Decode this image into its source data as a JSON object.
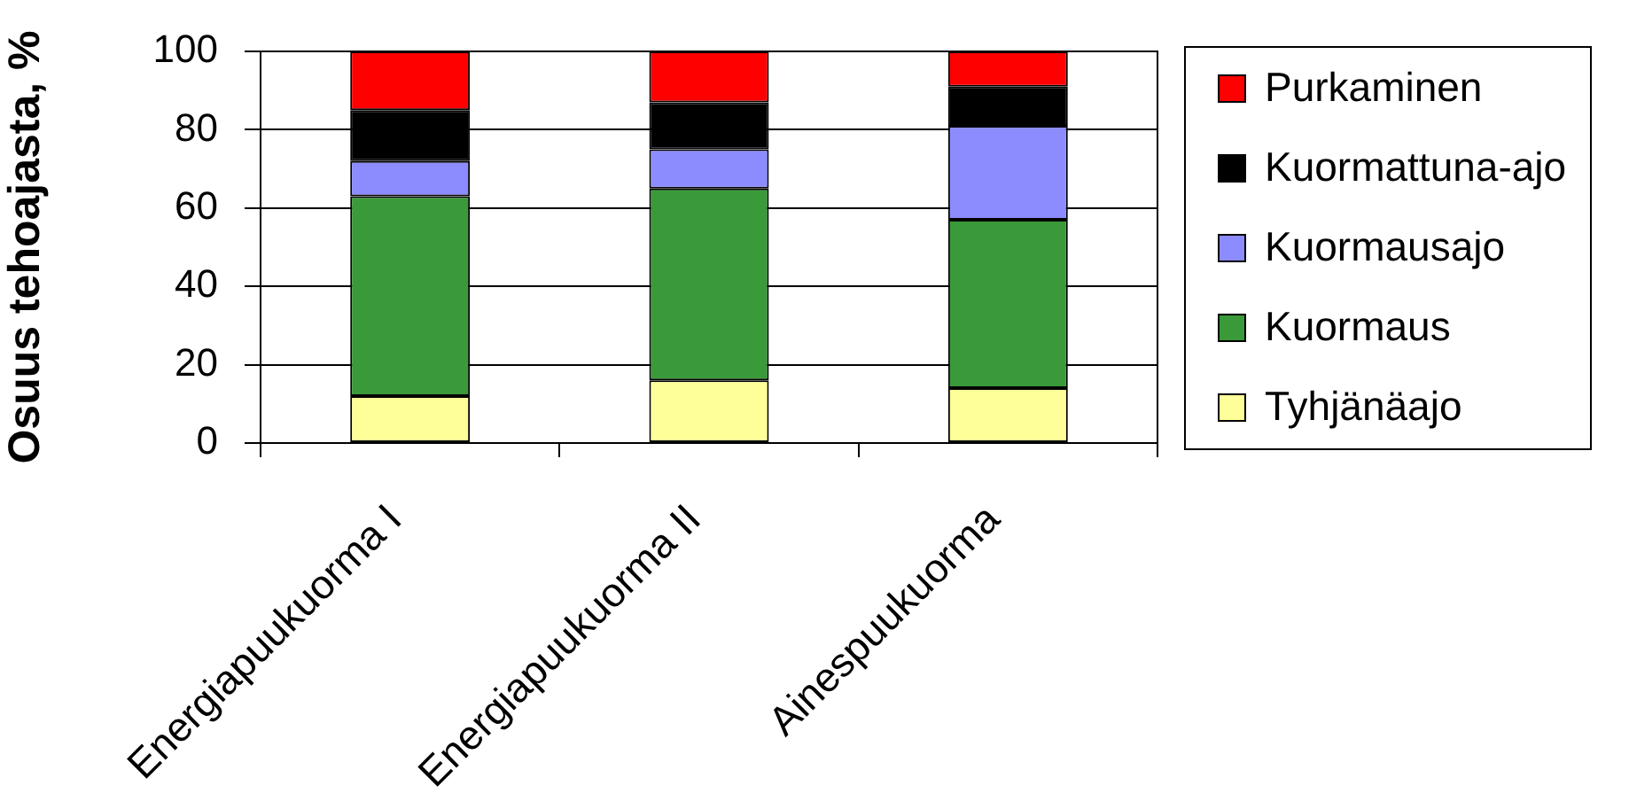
{
  "chart_data": {
    "type": "bar",
    "ylabel": "Osuus tehoajasta, %",
    "categories": [
      "Energiapuukuorma I",
      "Energiapuukuorma II",
      "Ainespuukuorma"
    ],
    "series": [
      {
        "name": "Tyhjänäajo",
        "color": "#ffff99",
        "values": [
          12,
          16,
          14
        ]
      },
      {
        "name": "Kuormaus",
        "color": "#3a9a3a",
        "values": [
          51,
          49,
          43
        ]
      },
      {
        "name": "Kuormausajo",
        "color": "#8c8cff",
        "values": [
          9,
          10,
          24
        ]
      },
      {
        "name": "Kuormattuna-ajo",
        "color": "#000000",
        "values": [
          13,
          12,
          10
        ]
      },
      {
        "name": "Purkaminen",
        "color": "#ff0000",
        "values": [
          15,
          13,
          9
        ]
      }
    ],
    "stacked": true,
    "ylim": [
      0,
      100
    ],
    "yticks": [
      0,
      20,
      40,
      60,
      80,
      100
    ],
    "grid": "y",
    "legend": "right"
  }
}
